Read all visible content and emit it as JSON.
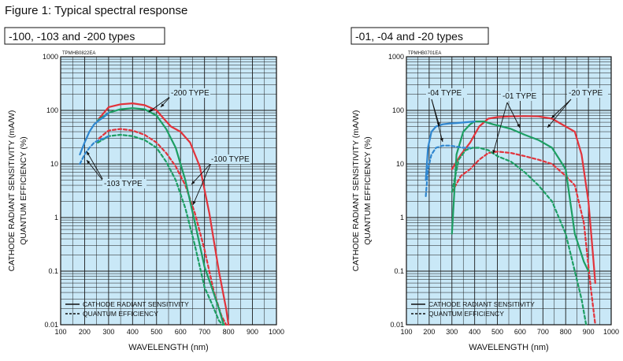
{
  "figure_title": "Figure 1: Typical spectral response",
  "colors": {
    "plot_bg": "#c9e8f7",
    "red": "#e2333b",
    "green": "#1d9e63",
    "blue": "#2f86cf",
    "grid": "#1a1a1a"
  },
  "chart_data": [
    {
      "type": "line",
      "panel_title": "-100, -103 and -200 types",
      "code": "TPMHB0822EA",
      "xlabel": "WAVELENGTH (nm)",
      "ylabel": "CATHODE RADIANT SENSITIVITY (mA/W)",
      "ylabel2": "QUANTUM EFFICIENCY (%)",
      "xlim": [
        100,
        1000
      ],
      "ylim": [
        0.01,
        1000
      ],
      "yscale": "log",
      "grid": true,
      "x_ticks": [
        "100",
        "200",
        "300",
        "400",
        "500",
        "600",
        "700",
        "800",
        "900",
        "1000"
      ],
      "y_ticks": [
        "0.01",
        "0.1",
        "1",
        "10",
        "100",
        "1000"
      ],
      "legend": {
        "position": "bottom-left",
        "items": [
          {
            "label": "CATHODE RADIANT SENSITIVITY",
            "style": "solid"
          },
          {
            "label": "QUANTUM EFFICIENCY",
            "style": "dashed"
          }
        ]
      },
      "annotations": [
        "-200 TYPE",
        "-100 TYPE",
        "-103 TYPE"
      ],
      "series": [
        {
          "color": "red",
          "style": "solid",
          "x": [
            260,
            300,
            350,
            400,
            450,
            500,
            530,
            560,
            600,
            640,
            680,
            720,
            760,
            790,
            800
          ],
          "y": [
            70,
            115,
            130,
            135,
            125,
            100,
            70,
            50,
            40,
            25,
            9,
            1.2,
            0.1,
            0.02,
            0.01
          ]
        },
        {
          "color": "red",
          "style": "dashed",
          "x": [
            260,
            300,
            350,
            400,
            450,
            500,
            540,
            580,
            620,
            660,
            700,
            740,
            770,
            790
          ],
          "y": [
            30,
            42,
            45,
            42,
            35,
            25,
            16,
            9,
            4,
            1.2,
            0.25,
            0.04,
            0.015,
            0.01
          ]
        },
        {
          "color": "green",
          "style": "solid",
          "x": [
            255,
            300,
            350,
            400,
            450,
            500,
            540,
            580,
            620,
            660,
            700,
            730,
            760,
            780
          ],
          "y": [
            65,
            90,
            105,
            110,
            105,
            80,
            45,
            20,
            5,
            0.8,
            0.12,
            0.05,
            0.02,
            0.01
          ]
        },
        {
          "color": "green",
          "style": "dashed",
          "x": [
            255,
            300,
            350,
            400,
            450,
            500,
            540,
            580,
            620,
            660,
            700,
            730,
            760,
            775
          ],
          "y": [
            25,
            33,
            35,
            33,
            28,
            20,
            11,
            5,
            1.5,
            0.3,
            0.05,
            0.025,
            0.012,
            0.01
          ]
        },
        {
          "color": "blue",
          "style": "solid",
          "x": [
            180,
            200,
            220,
            240,
            260,
            280,
            300
          ],
          "y": [
            15,
            25,
            40,
            55,
            65,
            75,
            90
          ]
        },
        {
          "color": "blue",
          "style": "dashed",
          "x": [
            180,
            200,
            220,
            240,
            260,
            280,
            300
          ],
          "y": [
            10,
            15,
            20,
            25,
            28,
            30,
            33
          ]
        }
      ]
    },
    {
      "type": "line",
      "panel_title": "-01, -04 and -20 types",
      "code": "TPMHB0701EA",
      "xlabel": "WAVELENGTH (nm)",
      "ylabel": "CATHODE RADIANT SENSITIVITY (mA/W)",
      "ylabel2": "QUANTUM EFFICIENCY (%)",
      "xlim": [
        100,
        1000
      ],
      "ylim": [
        0.01,
        1000
      ],
      "yscale": "log",
      "grid": true,
      "x_ticks": [
        "100",
        "200",
        "300",
        "400",
        "500",
        "600",
        "700",
        "800",
        "900",
        "1000"
      ],
      "y_ticks": [
        "0.01",
        "0.1",
        "1",
        "10",
        "100",
        "1000"
      ],
      "legend": {
        "position": "bottom-left",
        "items": [
          {
            "label": "CATHODE RADIANT SENSITIVITY",
            "style": "solid"
          },
          {
            "label": "QUANTUM EFFICIENCY",
            "style": "dashed"
          }
        ]
      },
      "annotations": [
        "-04 TYPE",
        "-01 TYPE",
        "-20 TYPE"
      ],
      "series": [
        {
          "color": "red",
          "style": "solid",
          "x": [
            300,
            340,
            380,
            420,
            460,
            500,
            560,
            620,
            680,
            740,
            800,
            840,
            870,
            900,
            920,
            930
          ],
          "y": [
            8,
            15,
            25,
            50,
            70,
            75,
            77,
            78,
            77,
            70,
            50,
            40,
            15,
            2,
            0.2,
            0.06
          ]
        },
        {
          "color": "red",
          "style": "dashed",
          "x": [
            300,
            340,
            380,
            420,
            460,
            500,
            560,
            620,
            680,
            740,
            800,
            840,
            880,
            910,
            930
          ],
          "y": [
            3,
            6,
            8,
            12,
            16,
            17,
            16,
            14,
            12,
            10,
            6,
            4,
            0.8,
            0.05,
            0.01
          ]
        },
        {
          "color": "green",
          "style": "solid",
          "x": [
            300,
            320,
            350,
            380,
            400,
            440,
            480,
            520,
            560,
            620,
            680,
            740,
            800,
            840,
            880,
            900
          ],
          "y": [
            0.5,
            15,
            40,
            55,
            62,
            62,
            55,
            50,
            45,
            35,
            28,
            20,
            8,
            0.5,
            0.15,
            0.1
          ]
        },
        {
          "color": "green",
          "style": "dashed",
          "x": [
            300,
            330,
            360,
            390,
            420,
            460,
            500,
            560,
            620,
            680,
            740,
            800,
            840,
            870,
            890
          ],
          "y": [
            3,
            12,
            18,
            20,
            20,
            18,
            14,
            11,
            7,
            4,
            2,
            0.5,
            0.1,
            0.03,
            0.01
          ]
        },
        {
          "color": "blue",
          "style": "solid",
          "x": [
            185,
            195,
            210,
            230,
            260,
            290,
            320,
            360,
            400
          ],
          "y": [
            5,
            20,
            40,
            50,
            55,
            57,
            58,
            60,
            62
          ]
        },
        {
          "color": "blue",
          "style": "dashed",
          "x": [
            185,
            195,
            210,
            230,
            260,
            290,
            320,
            350,
            380
          ],
          "y": [
            2.5,
            8,
            15,
            20,
            22,
            22,
            21,
            20,
            20
          ]
        }
      ]
    }
  ]
}
